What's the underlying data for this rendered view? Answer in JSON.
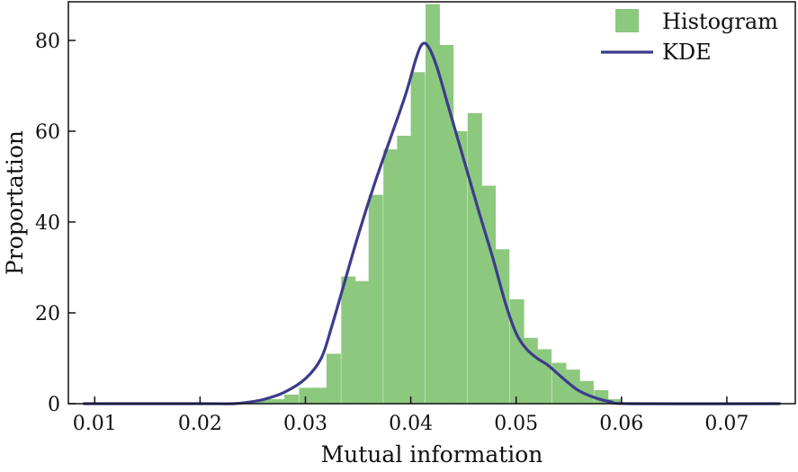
{
  "chart_data": {
    "type": "bar",
    "xlabel": "Mutual information",
    "ylabel": "Proportation",
    "xlim": [
      0.0075,
      0.0765
    ],
    "ylim": [
      0,
      88.5
    ],
    "xticks": [
      0.01,
      0.02,
      0.03,
      0.04,
      0.05,
      0.06,
      0.07
    ],
    "xtick_labels": [
      "0.01",
      "0.02",
      "0.03",
      "0.04",
      "0.05",
      "0.06",
      "0.07"
    ],
    "yticks": [
      0,
      20,
      40,
      60,
      80
    ],
    "ytick_labels": [
      "0",
      "20",
      "40",
      "60",
      "80"
    ],
    "grid": false,
    "legend_position": "top-right",
    "colors": {
      "histogram": "#8dc87f",
      "kde": "#3c3c8c"
    },
    "histogram": {
      "name": "Histogram",
      "bin_width": 0.00133,
      "bins": [
        [
          0.0254,
          1
        ],
        [
          0.0267,
          1
        ],
        [
          0.028,
          2
        ],
        [
          0.0294,
          3.5
        ],
        [
          0.0307,
          3.5
        ],
        [
          0.032,
          11
        ],
        [
          0.0334,
          28
        ],
        [
          0.0347,
          27
        ],
        [
          0.036,
          46
        ],
        [
          0.0374,
          56
        ],
        [
          0.0387,
          59
        ],
        [
          0.04,
          73
        ],
        [
          0.0414,
          88
        ],
        [
          0.0427,
          79
        ],
        [
          0.044,
          60
        ],
        [
          0.0454,
          64
        ],
        [
          0.0467,
          48
        ],
        [
          0.048,
          34
        ],
        [
          0.0494,
          23
        ],
        [
          0.0507,
          14.5
        ],
        [
          0.052,
          12
        ],
        [
          0.0534,
          9
        ],
        [
          0.0547,
          7.5
        ],
        [
          0.056,
          5
        ],
        [
          0.0574,
          3
        ],
        [
          0.0587,
          1
        ]
      ]
    },
    "kde": {
      "name": "KDE",
      "points": [
        [
          0.009,
          0
        ],
        [
          0.02,
          0
        ],
        [
          0.0232,
          0
        ],
        [
          0.0245,
          0.3
        ],
        [
          0.026,
          0.9
        ],
        [
          0.028,
          2.5
        ],
        [
          0.03,
          5.5
        ],
        [
          0.0315,
          10
        ],
        [
          0.0325,
          17
        ],
        [
          0.0335,
          25
        ],
        [
          0.035,
          37
        ],
        [
          0.0365,
          48
        ],
        [
          0.038,
          58
        ],
        [
          0.0395,
          68
        ],
        [
          0.0405,
          76
        ],
        [
          0.0411,
          79.2
        ],
        [
          0.0417,
          78.5
        ],
        [
          0.0425,
          74
        ],
        [
          0.0435,
          66
        ],
        [
          0.0445,
          58
        ],
        [
          0.0455,
          50
        ],
        [
          0.0465,
          42
        ],
        [
          0.0478,
          32
        ],
        [
          0.049,
          22
        ],
        [
          0.05,
          15.5
        ],
        [
          0.051,
          12
        ],
        [
          0.052,
          10
        ],
        [
          0.053,
          8.5
        ],
        [
          0.054,
          6.5
        ],
        [
          0.055,
          4.5
        ],
        [
          0.056,
          2.8
        ],
        [
          0.0575,
          1.3
        ],
        [
          0.059,
          0.4
        ],
        [
          0.061,
          0
        ],
        [
          0.075,
          0
        ]
      ]
    }
  }
}
